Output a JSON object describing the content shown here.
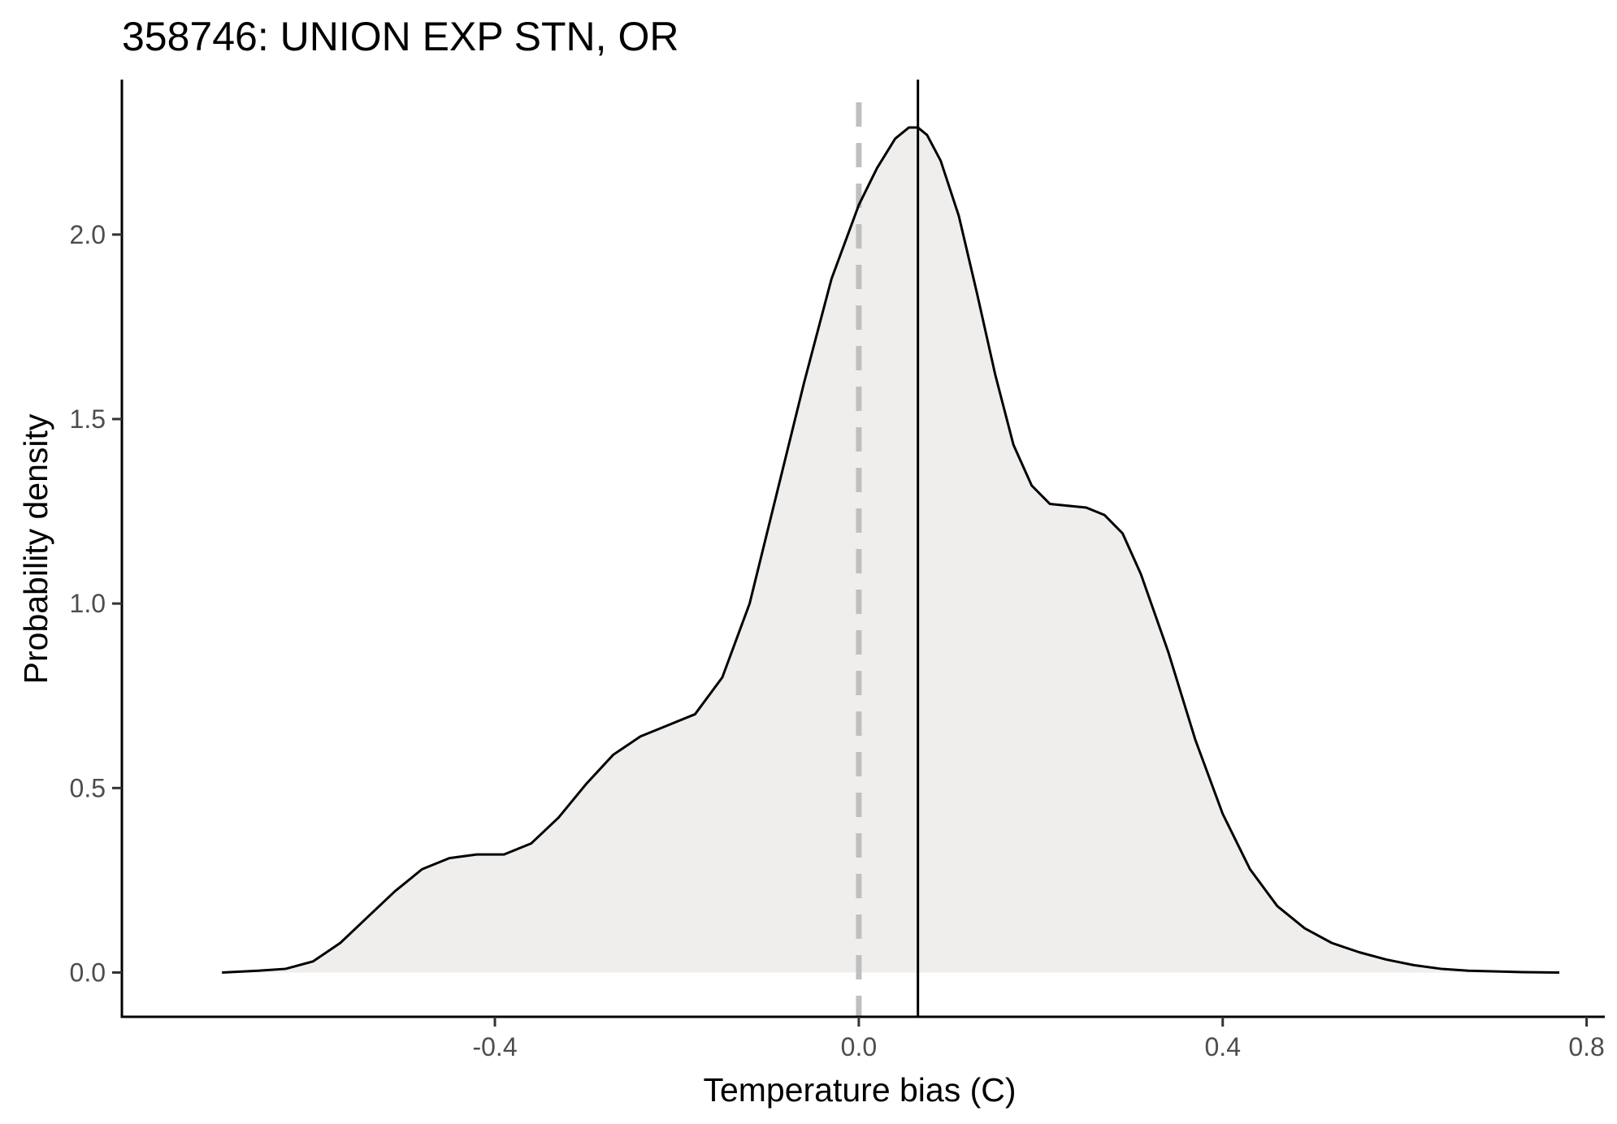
{
  "chart_data": {
    "type": "area",
    "title": "358746: UNION EXP STN, OR",
    "xlabel": "Temperature bias (C)",
    "ylabel": "Probability density",
    "xlim": [
      -0.81,
      0.82
    ],
    "ylim": [
      -0.12,
      2.42
    ],
    "xticks": [
      -0.4,
      0.0,
      0.4,
      0.8
    ],
    "xtick_labels": [
      "-0.4",
      "0.0",
      "0.4",
      "0.8"
    ],
    "yticks": [
      0.0,
      0.5,
      1.0,
      1.5,
      2.0
    ],
    "ytick_labels": [
      "0.0",
      "0.5",
      "1.0",
      "1.5",
      "2.0"
    ],
    "grid": false,
    "fill_color": "#efeeec",
    "line_color": "#000000",
    "reference_line": {
      "x": 0.0,
      "style": "dashed",
      "color": "#bfbfbf"
    },
    "mean_line": {
      "x": 0.065,
      "style": "solid",
      "color": "#000000"
    },
    "series": [
      {
        "x": [
          -0.7,
          -0.66,
          -0.63,
          -0.6,
          -0.57,
          -0.54,
          -0.51,
          -0.48,
          -0.45,
          -0.42,
          -0.39,
          -0.36,
          -0.33,
          -0.3,
          -0.27,
          -0.24,
          -0.21,
          -0.18,
          -0.15,
          -0.12,
          -0.09,
          -0.06,
          -0.03,
          0.0,
          0.02,
          0.04,
          0.055,
          0.065,
          0.075,
          0.09,
          0.11,
          0.13,
          0.15,
          0.17,
          0.19,
          0.21,
          0.23,
          0.25,
          0.27,
          0.29,
          0.31,
          0.34,
          0.37,
          0.4,
          0.43,
          0.46,
          0.49,
          0.52,
          0.55,
          0.58,
          0.61,
          0.64,
          0.67,
          0.7,
          0.73,
          0.77
        ],
        "y": [
          0.0,
          0.005,
          0.01,
          0.03,
          0.08,
          0.15,
          0.22,
          0.28,
          0.31,
          0.32,
          0.32,
          0.35,
          0.42,
          0.51,
          0.59,
          0.64,
          0.67,
          0.7,
          0.8,
          1.0,
          1.3,
          1.6,
          1.88,
          2.08,
          2.18,
          2.26,
          2.29,
          2.29,
          2.27,
          2.2,
          2.05,
          1.84,
          1.62,
          1.43,
          1.32,
          1.27,
          1.265,
          1.26,
          1.24,
          1.19,
          1.08,
          0.87,
          0.63,
          0.43,
          0.28,
          0.18,
          0.12,
          0.08,
          0.055,
          0.035,
          0.02,
          0.01,
          0.005,
          0.003,
          0.001,
          0.0
        ]
      }
    ]
  }
}
